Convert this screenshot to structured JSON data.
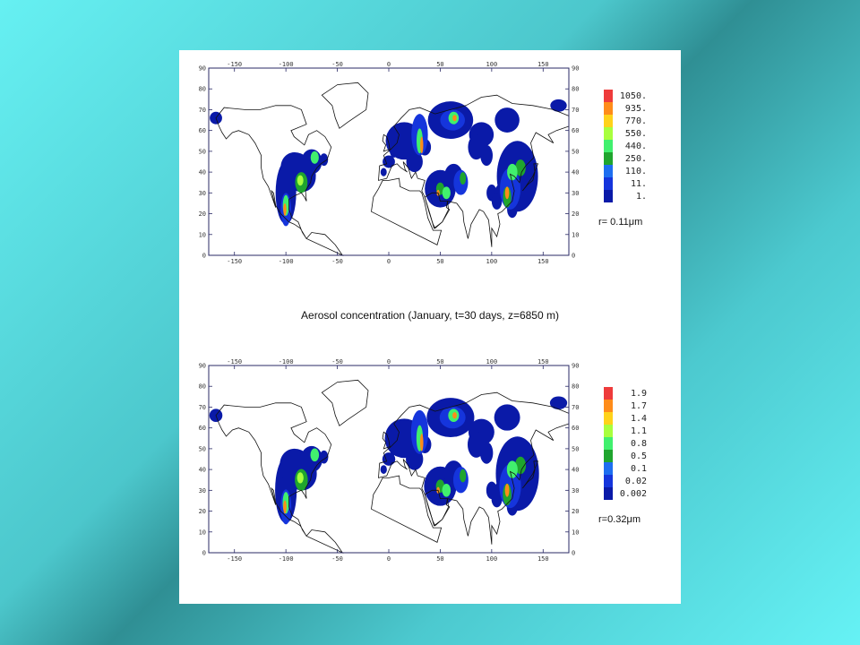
{
  "caption": "Aerosol concentration (January, t=30 days, z=6850 m)",
  "axes": {
    "lon_ticks": [
      "-150",
      "-100",
      "-50",
      "0",
      "50",
      "100",
      "150"
    ],
    "lat_ticks": [
      "0",
      "10",
      "20",
      "30",
      "40",
      "50",
      "60",
      "70",
      "80",
      "90"
    ],
    "lon_range": [
      -175,
      175
    ],
    "lat_range": [
      0,
      90
    ]
  },
  "colors": {
    "levels": [
      "#ee3b3b",
      "#ff8c1a",
      "#ffd21a",
      "#a8ff3e",
      "#41f06e",
      "#1fa52e",
      "#1e6ef0",
      "#1535dc",
      "#0a1aa8"
    ]
  },
  "panels": [
    {
      "radius_label": "r= 0.11μm",
      "legend": [
        "1050.",
        "935.",
        "770.",
        "550.",
        "440.",
        "250.",
        "110.",
        "11.",
        "1."
      ]
    },
    {
      "radius_label": "r=0.32μm",
      "legend": [
        "1.9",
        "1.7",
        "1.4",
        "1.1",
        "0.8",
        "0.5",
        "0.1",
        "0.02",
        "0.002"
      ]
    }
  ]
}
